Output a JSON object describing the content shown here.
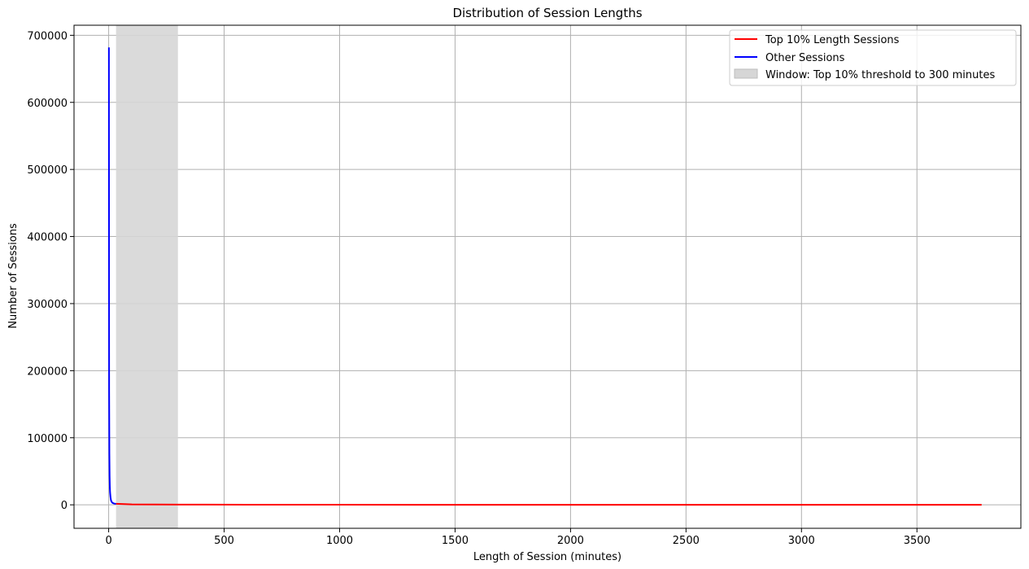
{
  "chart_data": {
    "type": "line",
    "title": "Distribution of Session Lengths",
    "xlabel": "Length of Session (minutes)",
    "ylabel": "Number of Sessions",
    "xlim": [
      -150,
      3950
    ],
    "ylim": [
      -35000,
      715000
    ],
    "xticks": [
      0,
      500,
      1000,
      1500,
      2000,
      2500,
      3000,
      3500
    ],
    "yticks": [
      0,
      100000,
      200000,
      300000,
      400000,
      500000,
      600000,
      700000
    ],
    "grid": true,
    "legend_position": "top-right",
    "span": {
      "name": "Window: Top 10% threshold to 300 minutes",
      "x_start": 32,
      "x_end": 300,
      "color": "#d6d6d6"
    },
    "series": [
      {
        "name": "Top 10% Length Sessions",
        "color": "#ff0000",
        "x": [
          32,
          100,
          300,
          600,
          1000,
          1500,
          2000,
          2500,
          3000,
          3500,
          3780
        ],
        "y": [
          1500,
          700,
          400,
          250,
          150,
          100,
          80,
          60,
          50,
          40,
          30
        ]
      },
      {
        "name": "Other Sessions",
        "color": "#0000ff",
        "x": [
          1,
          2,
          3,
          4,
          5,
          6,
          8,
          10,
          12,
          15,
          18,
          22,
          26,
          30,
          32
        ],
        "y": [
          682000,
          170000,
          76000,
          43000,
          27500,
          19000,
          11000,
          7000,
          5000,
          3500,
          2700,
          2100,
          1800,
          1600,
          1500
        ]
      }
    ]
  }
}
